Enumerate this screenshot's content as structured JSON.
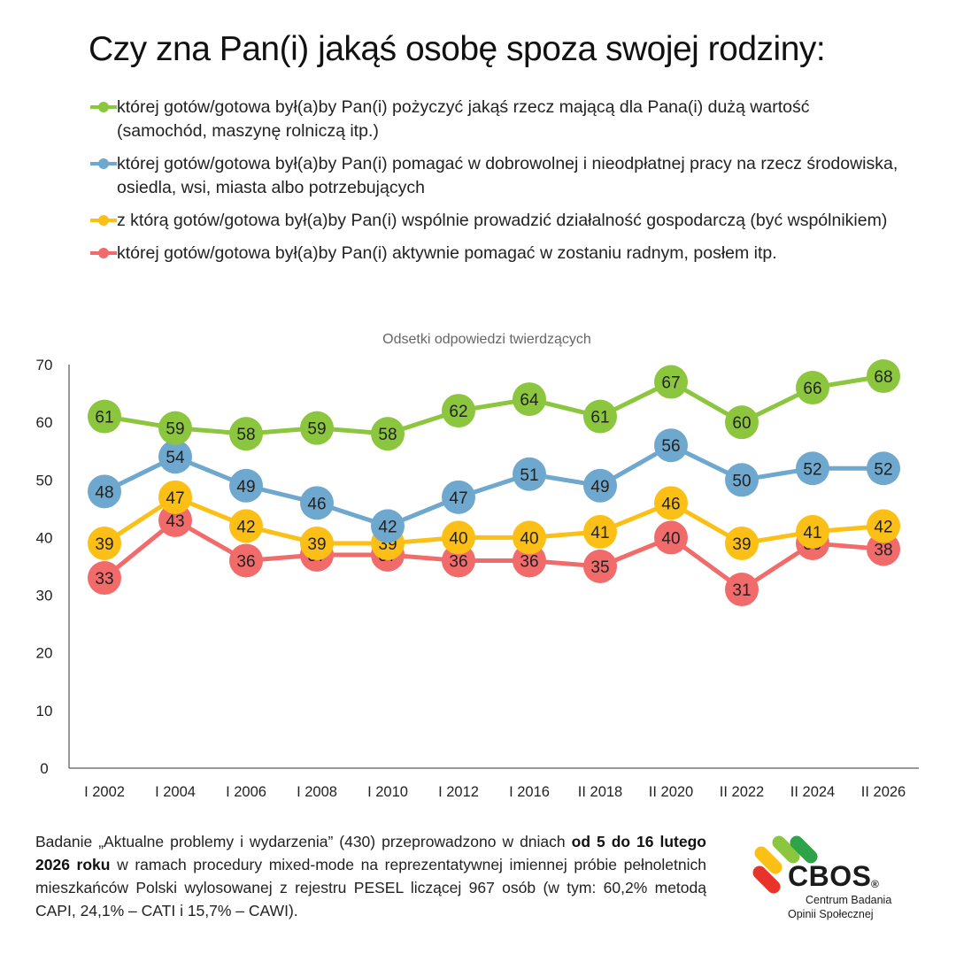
{
  "title": "Czy zna Pan(i) jakąś osobę spoza swojej rodziny:",
  "legend": [
    {
      "text": "której gotów/gotowa był(a)by Pan(i) pożyczyć jakąś rzecz mającą dla Pana(i) dużą wartość (samochód, maszynę rolniczą itp.)",
      "color": "#8cc63f"
    },
    {
      "text": "której gotów/gotowa był(a)by Pan(i) pomagać w dobrowolnej i nieodpłatnej pracy na rzecz środowiska, osiedla, wsi, miasta albo potrzebujących",
      "color": "#6fa8cf"
    },
    {
      "text": "z którą gotów/gotowa był(a)by Pan(i) wspólnie prowadzić działalność gospodarczą (być wspólnikiem)",
      "color": "#fbbf16"
    },
    {
      "text": "której gotów/gotowa był(a)by Pan(i) aktywnie pomagać w zostaniu radnym, posłem itp.",
      "color": "#f26b6b"
    }
  ],
  "chart_data": {
    "type": "line",
    "subtitle": "Odsetki odpowiedzi twierdzących",
    "categories": [
      "I 2002",
      "I 2004",
      "I 2006",
      "I 2008",
      "I 2010",
      "I 2012",
      "I 2016",
      "II 2018",
      "II 2020",
      "II 2022",
      "II 2024",
      "II 2026"
    ],
    "ylim": [
      0,
      70
    ],
    "yticks": [
      0,
      10,
      20,
      30,
      40,
      50,
      60,
      70
    ],
    "grid": false,
    "series": [
      {
        "color": "#8cc63f",
        "values": [
          61,
          59,
          58,
          59,
          58,
          62,
          64,
          61,
          67,
          60,
          66,
          68
        ]
      },
      {
        "color": "#6fa8cf",
        "values": [
          48,
          54,
          49,
          46,
          42,
          47,
          51,
          49,
          56,
          50,
          52,
          52
        ]
      },
      {
        "color": "#fbbf16",
        "values": [
          39,
          47,
          42,
          39,
          39,
          40,
          40,
          41,
          46,
          39,
          41,
          42
        ]
      },
      {
        "color": "#f26b6b",
        "values": [
          33,
          43,
          36,
          37,
          37,
          36,
          36,
          35,
          40,
          31,
          39,
          38
        ]
      }
    ]
  },
  "footer": {
    "part1": "Badanie „Aktualne problemy i wydarzenia” (430) przeprowadzono w dniach ",
    "bold": "od 5 do 16 lutego 2026 roku",
    "part2": " w ramach procedury mixed-mode na reprezentatywnej imiennej próbie pełnoletnich mieszkańców Polski wylosowanej z rejestru PESEL liczącej 967 osób (w tym: 60,2% metodą CAPI, 24,1% – CATI i 15,7% – CAWI)."
  },
  "logo": {
    "word": "CBOS",
    "reg": "®",
    "line1": "Centrum Badania",
    "line2": "Opinii Społecznej"
  }
}
